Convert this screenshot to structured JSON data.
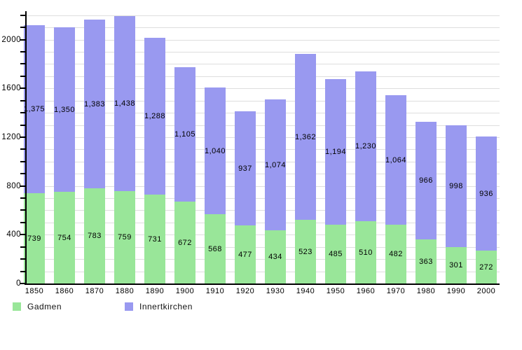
{
  "chart_data": {
    "type": "bar",
    "stacked": true,
    "title": "",
    "xlabel": "",
    "ylabel": "",
    "categories": [
      "1850",
      "1860",
      "1870",
      "1880",
      "1890",
      "1900",
      "1910",
      "1920",
      "1930",
      "1940",
      "1950",
      "1960",
      "1970",
      "1980",
      "1990",
      "2000"
    ],
    "series": [
      {
        "name": "Gadmen",
        "color": "#99E699",
        "values": [
          739,
          754,
          783,
          759,
          731,
          672,
          568,
          477,
          434,
          523,
          485,
          510,
          482,
          363,
          301,
          272
        ]
      },
      {
        "name": "Innertkirchen",
        "color": "#9999F0",
        "values": [
          1375,
          1350,
          1383,
          1438,
          1288,
          1105,
          1040,
          937,
          1074,
          1362,
          1194,
          1230,
          1064,
          966,
          998,
          936
        ]
      }
    ],
    "ylim": [
      0,
      2200
    ],
    "yticks": [
      0,
      400,
      800,
      1200,
      1600,
      2000
    ],
    "minor_tick_step": 100,
    "grid": true,
    "grid_step": 100,
    "value_labels": "centered-in-segment, thousands comma format",
    "legend_position": "bottom-left"
  },
  "colors": {
    "background": "#FFFFFF",
    "gridline": "#DEDEDE",
    "axis": "#000000",
    "bar_label_text": "#000000",
    "legend_text": "#111111"
  }
}
